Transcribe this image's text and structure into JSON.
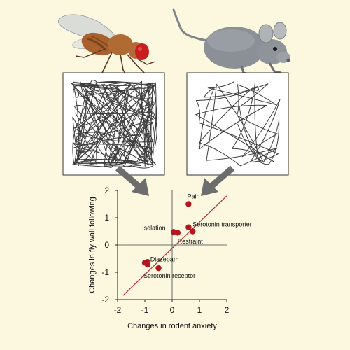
{
  "chart_data": {
    "type": "scatter",
    "title": "",
    "xlabel": "Changes in rodent anxiety",
    "ylabel": "Changes in fly wall following",
    "xlim": [
      -2,
      2
    ],
    "ylim": [
      -2,
      2
    ],
    "xticks": [
      "-2",
      "-1",
      "0",
      "1",
      "2"
    ],
    "yticks": [
      "-2",
      "-1",
      "0",
      "1",
      "2"
    ],
    "grid": false,
    "points": [
      {
        "x": 0.6,
        "y": 1.5
      },
      {
        "x": 0.6,
        "y": 0.65
      },
      {
        "x": 0.75,
        "y": 0.5
      },
      {
        "x": 0.05,
        "y": 0.48
      },
      {
        "x": 0.2,
        "y": 0.45
      },
      {
        "x": -1.0,
        "y": -0.65
      },
      {
        "x": -0.9,
        "y": -0.62
      },
      {
        "x": -0.9,
        "y": -0.72
      },
      {
        "x": -0.5,
        "y": -0.85
      }
    ],
    "annotations": [
      {
        "text": "Pain",
        "x": 0.55,
        "y": 1.7
      },
      {
        "text": "Serotonin transporter",
        "x": 0.75,
        "y": 0.68
      },
      {
        "text": "Isolation",
        "x": -1.1,
        "y": 0.55
      },
      {
        "text": "Restraint",
        "x": 0.2,
        "y": 0.05
      },
      {
        "text": "Diazepam",
        "x": -0.8,
        "y": -0.6
      },
      {
        "text": "Serotonin receptor",
        "x": -1.05,
        "y": -1.2
      }
    ],
    "fit_line": {
      "from": [
        -1.8,
        -1.85
      ],
      "to": [
        2.0,
        1.8
      ]
    },
    "colors": {
      "points": "#b0181e",
      "fit_line": "#c0282e",
      "track": "#3c3c3c"
    }
  },
  "illustrations": {
    "fly": "fruit-fly",
    "mouse": "mouse",
    "fly_track": "fly-open-field-track",
    "mouse_track": "mouse-open-field-track"
  }
}
